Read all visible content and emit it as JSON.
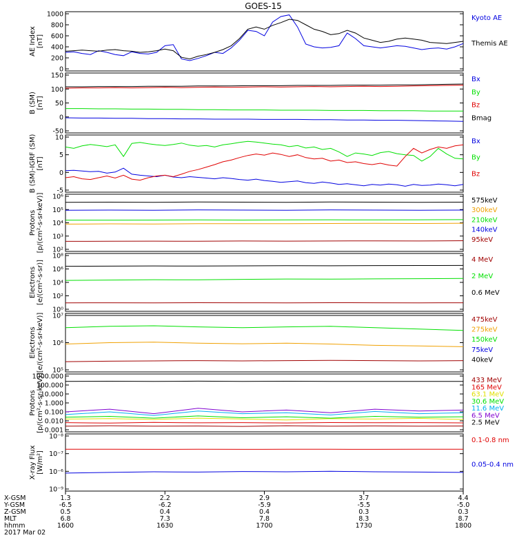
{
  "title": "GOES-15",
  "colors": {
    "black": "#000000",
    "blue": "#0000e0",
    "red": "#e00000",
    "green": "#00e000",
    "orange": "#f0a000",
    "yellow": "#e0e000",
    "cyan": "#00b0f0",
    "magenta": "#c000c0",
    "purple": "#8000d0",
    "darkred": "#a00000"
  },
  "panels": [
    {
      "id": "ae",
      "ylabel": [
        "AE Index",
        "[nT]"
      ],
      "ticks": [
        "1000",
        "800",
        "600",
        "400",
        "200",
        "0"
      ],
      "series": [
        {
          "name": "Kyoto AE",
          "color": "blue",
          "values": [
            300,
            310,
            280,
            260,
            330,
            300,
            260,
            240,
            310,
            280,
            270,
            300,
            420,
            440,
            180,
            150,
            190,
            240,
            300,
            280,
            380,
            520,
            700,
            680,
            600,
            850,
            950,
            980,
            760,
            450,
            400,
            380,
            390,
            420,
            650,
            550,
            420,
            400,
            380,
            400,
            420,
            410,
            380,
            350,
            370,
            380,
            360,
            400,
            460
          ]
        },
        {
          "name": "Themis AE",
          "color": "black",
          "values": [
            320,
            330,
            340,
            330,
            320,
            340,
            350,
            330,
            320,
            300,
            310,
            330,
            360,
            330,
            210,
            180,
            230,
            260,
            300,
            350,
            420,
            550,
            720,
            760,
            720,
            790,
            840,
            900,
            880,
            800,
            720,
            680,
            620,
            640,
            700,
            650,
            560,
            520,
            480,
            500,
            540,
            560,
            540,
            520,
            480,
            470,
            460,
            480,
            500
          ]
        }
      ]
    },
    {
      "id": "bsm",
      "ylabel": [
        "B (SM)",
        "[nT]"
      ],
      "ticks": [
        "150",
        "100",
        "50",
        "0",
        "-50"
      ],
      "series": [
        {
          "name": "Bx",
          "color": "blue",
          "values": [
            -3,
            -4,
            -4,
            -5,
            -5,
            -6,
            -6,
            -7,
            -7,
            -8,
            -8,
            -8,
            -9,
            -9,
            -9,
            -10,
            -10,
            -11,
            -11,
            -12,
            -12,
            -13,
            -14,
            -15,
            -16
          ]
        },
        {
          "name": "By",
          "color": "green",
          "values": [
            30,
            30,
            29,
            29,
            28,
            28,
            27,
            27,
            26,
            26,
            25,
            25,
            25,
            24,
            24,
            24,
            23,
            23,
            23,
            22,
            22,
            22,
            21,
            21,
            21
          ]
        },
        {
          "name": "Bz",
          "color": "red",
          "values": [
            103,
            104,
            104,
            105,
            104,
            105,
            106,
            105,
            106,
            107,
            106,
            107,
            108,
            107,
            108,
            109,
            108,
            109,
            110,
            109,
            110,
            111,
            112,
            113,
            114
          ]
        },
        {
          "name": "Bmag",
          "color": "black",
          "values": [
            108,
            108,
            109,
            109,
            109,
            110,
            110,
            110,
            111,
            111,
            111,
            112,
            112,
            112,
            113,
            113,
            113,
            114,
            114,
            114,
            115,
            115,
            116,
            117,
            118
          ]
        }
      ]
    },
    {
      "id": "bigrf",
      "ylabel": [
        "B (SM)-IGRF (SM)",
        "[nT]"
      ],
      "ticks": [
        "10",
        "5",
        "0",
        "-5"
      ],
      "series": [
        {
          "name": "Bx",
          "color": "blue",
          "values": [
            0.5,
            0.6,
            0.4,
            0.2,
            0.3,
            -0.2,
            0.1,
            1.2,
            -0.5,
            -0.8,
            -1.0,
            -1.2,
            -0.8,
            -1.3,
            -1.5,
            -1.2,
            -1.4,
            -1.6,
            -1.8,
            -1.5,
            -1.7,
            -2.0,
            -2.2,
            -1.9,
            -2.3,
            -2.5,
            -2.8,
            -2.6,
            -2.4,
            -2.9,
            -3.1,
            -2.7,
            -3.0,
            -3.4,
            -3.2,
            -3.5,
            -3.8,
            -3.4,
            -3.6,
            -3.3,
            -3.5,
            -3.9,
            -3.4,
            -3.7,
            -3.6,
            -3.3,
            -3.5,
            -3.8,
            -3.4
          ]
        },
        {
          "name": "By",
          "color": "green",
          "values": [
            7.2,
            6.8,
            7.5,
            7.9,
            7.6,
            7.3,
            7.8,
            4.5,
            8.2,
            8.5,
            8.1,
            7.8,
            7.6,
            7.9,
            8.3,
            7.7,
            7.4,
            7.6,
            7.2,
            7.8,
            8.1,
            8.5,
            8.8,
            8.6,
            8.3,
            8.0,
            7.8,
            7.3,
            7.6,
            6.9,
            7.2,
            6.5,
            6.8,
            5.8,
            4.5,
            5.5,
            5.2,
            4.8,
            5.6,
            5.9,
            5.3,
            5.0,
            4.8,
            3.2,
            4.5,
            6.8,
            5.2,
            4.0,
            3.8
          ]
        },
        {
          "name": "Bz",
          "color": "red",
          "values": [
            -1.5,
            -1.2,
            -1.8,
            -2.0,
            -1.5,
            -1.0,
            -1.6,
            -0.8,
            -1.9,
            -2.2,
            -1.5,
            -1.0,
            -0.8,
            -1.2,
            -0.5,
            0.3,
            0.8,
            1.5,
            2.2,
            3.0,
            3.5,
            4.2,
            4.8,
            5.2,
            4.9,
            5.5,
            5.1,
            4.5,
            5.0,
            4.2,
            3.8,
            4.0,
            3.2,
            3.5,
            2.8,
            3.0,
            2.5,
            2.2,
            2.6,
            2.1,
            1.8,
            4.5,
            6.8,
            5.5,
            6.5,
            7.2,
            6.8,
            7.5,
            7.8
          ]
        }
      ]
    },
    {
      "id": "protons",
      "ylabel": [
        "Protons",
        "[p/(cm²-s-sr-keV)]"
      ],
      "ticks": [
        "10⁶",
        "10⁵",
        "10⁴",
        "10³",
        "10²"
      ],
      "log": true,
      "ymin": 2,
      "ymax": 6,
      "series": [
        {
          "name": "575keV",
          "color": "black",
          "values": [
            5.55,
            5.56,
            5.55,
            5.57,
            5.56,
            5.55,
            5.57,
            5.56,
            5.55,
            5.56
          ]
        },
        {
          "name": "300keV",
          "color": "orange",
          "values": [
            3.9,
            3.92,
            3.91,
            3.93,
            3.94,
            3.93,
            3.95,
            3.96,
            3.95,
            3.97
          ]
        },
        {
          "name": "210keV",
          "color": "green",
          "values": [
            4.2,
            4.2,
            4.21,
            4.22,
            4.21,
            4.22,
            4.23,
            4.22,
            4.23,
            4.24
          ]
        },
        {
          "name": "140keV",
          "color": "blue",
          "values": [
            4.95,
            4.96,
            4.95,
            4.97,
            4.96,
            4.95,
            4.97,
            4.96,
            4.95,
            4.96
          ]
        },
        {
          "name": "95keV",
          "color": "darkred",
          "values": [
            2.6,
            2.61,
            2.62,
            2.61,
            2.63,
            2.62,
            2.63,
            2.64,
            2.63,
            2.65
          ]
        }
      ]
    },
    {
      "id": "electrons_mev",
      "ylabel": [
        "Electrons",
        "[e/(cm²-s-sr)]"
      ],
      "ticks": [
        "10⁸",
        "10⁶",
        "10⁴",
        "10²",
        "10⁰"
      ],
      "log": true,
      "ymin": 0,
      "ymax": 8,
      "series": [
        {
          "name": "4 MeV",
          "color": "darkred",
          "values": [
            0.95,
            0.96,
            0.95,
            0.97,
            0.96,
            0.95,
            0.97,
            0.96,
            0.95,
            0.96
          ]
        },
        {
          "name": "2 MeV",
          "color": "green",
          "values": [
            4.3,
            4.35,
            4.4,
            4.38,
            4.45,
            4.5,
            4.48,
            4.52,
            4.55,
            4.58
          ]
        },
        {
          "name": "0.6 MeV",
          "color": "black",
          "values": [
            6.4,
            6.42,
            6.45,
            6.43,
            6.46,
            6.48,
            6.47,
            6.5,
            6.51,
            6.52
          ]
        }
      ]
    },
    {
      "id": "electrons_kev",
      "ylabel": [
        "Electrons",
        "[e/(cm²-s-sr-keV)]"
      ],
      "ticks": [
        "10⁷",
        "10⁶",
        "10⁵"
      ],
      "log": true,
      "ymin": 5,
      "ymax": 7,
      "series": [
        {
          "name": "475keV",
          "color": "darkred",
          "values": [
            5.3,
            5.32,
            5.33,
            5.34,
            5.33,
            5.34,
            5.35,
            5.34,
            5.33,
            5.34
          ]
        },
        {
          "name": "275keV",
          "color": "orange",
          "values": [
            5.95,
            6.0,
            6.02,
            5.98,
            5.96,
            5.98,
            5.95,
            5.9,
            5.88,
            5.85
          ]
        },
        {
          "name": "150keV",
          "color": "green",
          "values": [
            6.55,
            6.6,
            6.62,
            6.58,
            6.55,
            6.58,
            6.6,
            6.55,
            6.5,
            6.45
          ]
        },
        {
          "name": "75keV",
          "color": "blue",
          "values": [
            7.0,
            7.0,
            7.0,
            7.0,
            7.0,
            7.0,
            7.0,
            7.0,
            7.0,
            7.0
          ]
        },
        {
          "name": "40keV",
          "color": "black",
          "values": [
            7.0,
            7.0,
            7.0,
            7.0,
            7.0,
            7.0,
            7.0,
            7.0,
            7.0,
            7.0
          ]
        }
      ]
    },
    {
      "id": "protons_mev",
      "ylabel": [
        "Protons",
        "[p/(cm²-s-sr-keV)]"
      ],
      "ticks": [
        "1000.000",
        "100.000",
        "10.000",
        "1.000",
        "0.100",
        "0.010",
        "0.001"
      ],
      "log": true,
      "ymin": -3,
      "ymax": 3,
      "series": [
        {
          "name": "433 MeV",
          "color": "darkred",
          "values": [
            -2.6,
            -2.55,
            -2.6,
            -2.58,
            -2.62,
            -2.55,
            -2.6,
            -2.57,
            -2.6,
            -2.58
          ]
        },
        {
          "name": "165 MeV",
          "color": "red",
          "values": [
            -2.2,
            -2.25,
            -2.18,
            -2.22,
            -2.2,
            -2.24,
            -2.19,
            -2.21,
            -2.2,
            -2.23
          ]
        },
        {
          "name": "63.1 MeV",
          "color": "yellow",
          "values": [
            -1.8,
            -1.75,
            -1.85,
            -1.7,
            -1.8,
            -1.9,
            -1.75,
            -1.8,
            -1.72,
            -1.85
          ]
        },
        {
          "name": "30.6 MeV",
          "color": "green",
          "values": [
            -1.6,
            -1.5,
            -1.7,
            -1.45,
            -1.65,
            -1.55,
            -1.7,
            -1.5,
            -1.6,
            -1.55
          ]
        },
        {
          "name": "11.6 MeV",
          "color": "cyan",
          "values": [
            -1.3,
            -1.0,
            -1.4,
            -0.9,
            -1.2,
            -1.1,
            -1.35,
            -0.95,
            -1.2,
            -1.1
          ]
        },
        {
          "name": "6.5 MeV",
          "color": "purple",
          "values": [
            -1.0,
            -0.7,
            -1.2,
            -0.6,
            -1.0,
            -0.8,
            -1.1,
            -0.7,
            -0.9,
            -0.8
          ]
        },
        {
          "name": "2.5 MeV",
          "color": "black",
          "values": [
            2.4,
            2.42,
            2.4,
            2.43,
            2.41,
            2.42,
            2.4,
            2.41,
            2.4,
            2.41
          ]
        }
      ]
    },
    {
      "id": "xray",
      "ylabel": [
        "X-ray Flux",
        "[W/m²]"
      ],
      "ticks": [
        "10⁻⁸",
        "10⁻⁷",
        "10⁻⁶",
        "10⁻⁹"
      ],
      "log": true,
      "ymin": -9,
      "ymax": -5,
      "series": [
        {
          "name": "0.1-0.8 nm",
          "color": "red",
          "values": [
            -6.0,
            -6.0,
            -6.01,
            -6.0,
            -6.01,
            -6.0,
            -6.0,
            -6.01,
            -6.0,
            -6.0
          ]
        },
        {
          "name": "0.05-0.4 nm",
          "color": "blue",
          "values": [
            -7.8,
            -7.75,
            -7.7,
            -7.72,
            -7.68,
            -7.7,
            -7.66,
            -7.7,
            -7.72,
            -7.75
          ]
        }
      ]
    }
  ],
  "xaxis": {
    "labels": [
      "X-GSM",
      "Y-GSM",
      "Z-GSM",
      "MLT",
      "hhmm"
    ],
    "date": "2017 Mar 02",
    "columns": [
      [
        "1.3",
        "-6.5",
        "0.5",
        "6.8",
        "1600"
      ],
      [
        "2.2",
        "-6.2",
        "0.4",
        "7.3",
        "1630"
      ],
      [
        "2.9",
        "-5.9",
        "0.4",
        "7.8",
        "1700"
      ],
      [
        "3.7",
        "-5.5",
        "0.3",
        "8.3",
        "1730"
      ],
      [
        "4.4",
        "-5.0",
        "0.3",
        "8.7",
        "1800"
      ]
    ]
  },
  "chart_data": {
    "type": "line",
    "title": "GOES-15",
    "xlabel": "hhmm",
    "x_ticks": [
      "1600",
      "1630",
      "1700",
      "1730",
      "1800"
    ],
    "panels": [
      "AE Index",
      "B (SM)",
      "B (SM)-IGRF (SM)",
      "Protons",
      "Electrons",
      "Electrons",
      "Protons",
      "X-ray Flux"
    ]
  }
}
